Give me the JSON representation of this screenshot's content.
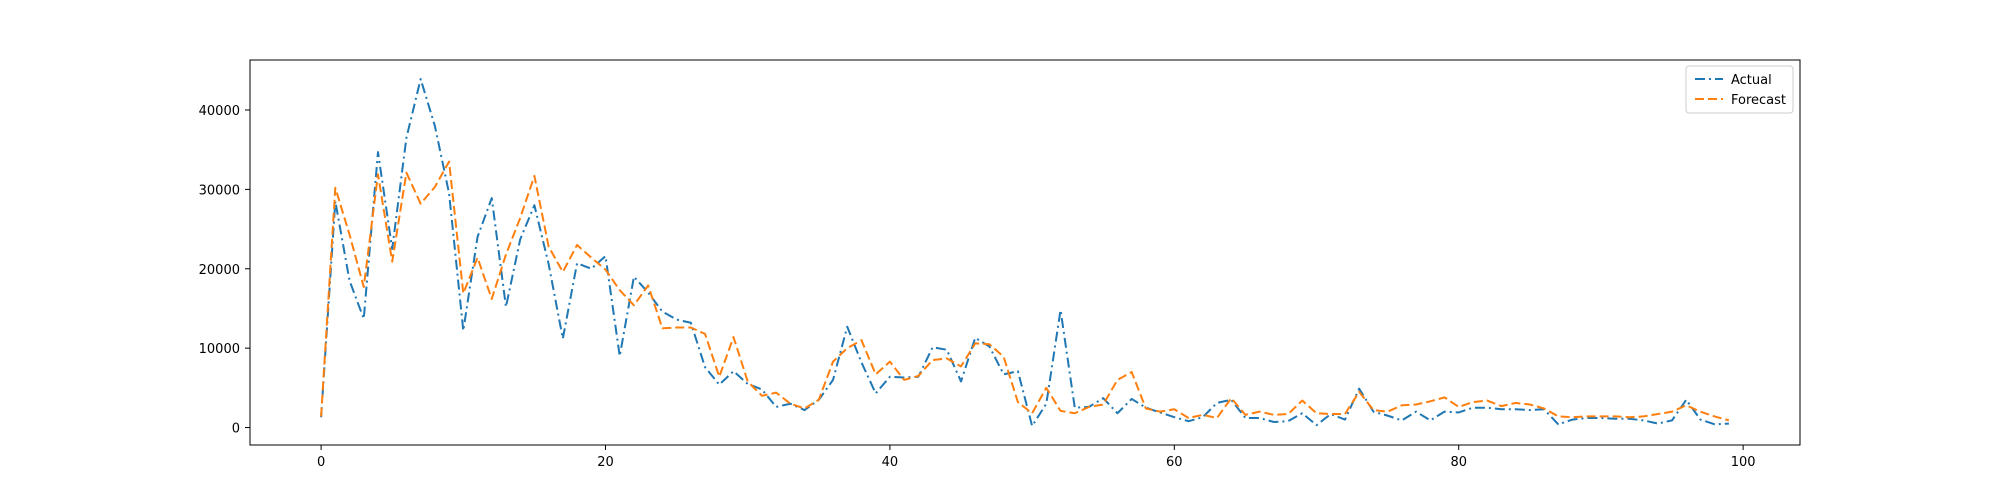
{
  "chart_data": {
    "type": "line",
    "title": "",
    "xlabel": "",
    "ylabel": "",
    "xlim": [
      -5,
      104
    ],
    "ylim": [
      -2200,
      46300
    ],
    "x_ticks": [
      0,
      20,
      40,
      60,
      80,
      100
    ],
    "y_ticks": [
      0,
      10000,
      20000,
      30000,
      40000
    ],
    "grid": false,
    "legend": {
      "placement": "top-right"
    },
    "series": [
      {
        "name": "Actual",
        "color": "#1f77b4",
        "dash": "dash-dot",
        "values": [
          1300,
          28500,
          18500,
          13700,
          34700,
          22500,
          36500,
          43900,
          38000,
          29500,
          12200,
          24000,
          28900,
          15200,
          23700,
          28000,
          20600,
          11200,
          20700,
          20000,
          21600,
          9000,
          19000,
          17000,
          14600,
          13600,
          13200,
          7600,
          5400,
          7100,
          5500,
          4800,
          2600,
          3000,
          2200,
          3500,
          6000,
          12700,
          8200,
          4300,
          6400,
          6300,
          6400,
          10100,
          9800,
          5800,
          11300,
          10200,
          6700,
          7100,
          200,
          3000,
          14800,
          2500,
          2600,
          3700,
          1800,
          3600,
          2500,
          1900,
          1300,
          800,
          1300,
          3100,
          3500,
          1200,
          1200,
          700,
          800,
          1800,
          300,
          1700,
          1000,
          4900,
          2000,
          1500,
          900,
          2000,
          900,
          2000,
          1900,
          2500,
          2500,
          2300,
          2300,
          2200,
          2300,
          400,
          1000,
          1200,
          1200,
          1100,
          1100,
          900,
          500,
          900,
          3500,
          1000,
          400,
          500
        ]
      },
      {
        "name": "Forecast",
        "color": "#ff7f0e",
        "dash": "dashed",
        "values": [
          1400,
          30200,
          24300,
          17700,
          31900,
          20900,
          32100,
          28200,
          30300,
          33500,
          16900,
          21400,
          16200,
          21800,
          26400,
          31700,
          22800,
          19600,
          23000,
          21400,
          19900,
          17300,
          15400,
          17900,
          12500,
          12600,
          12600,
          11800,
          6400,
          11400,
          5800,
          4000,
          4400,
          3000,
          2400,
          3500,
          8300,
          10000,
          11000,
          6700,
          8300,
          6000,
          6500,
          8500,
          8700,
          7700,
          10600,
          10500,
          8900,
          3200,
          1800,
          5000,
          2100,
          1800,
          2600,
          2900,
          6000,
          7000,
          2400,
          2000,
          2300,
          1200,
          1600,
          1200,
          3700,
          1600,
          2000,
          1600,
          1700,
          3400,
          1800,
          1700,
          1700,
          4500,
          2200,
          2000,
          2800,
          2900,
          3300,
          3800,
          2600,
          3200,
          3400,
          2700,
          3100,
          2900,
          2400,
          1400,
          1300,
          1400,
          1400,
          1400,
          1300,
          1400,
          1700,
          2000,
          2800,
          2000,
          1400,
          900
        ]
      }
    ]
  }
}
